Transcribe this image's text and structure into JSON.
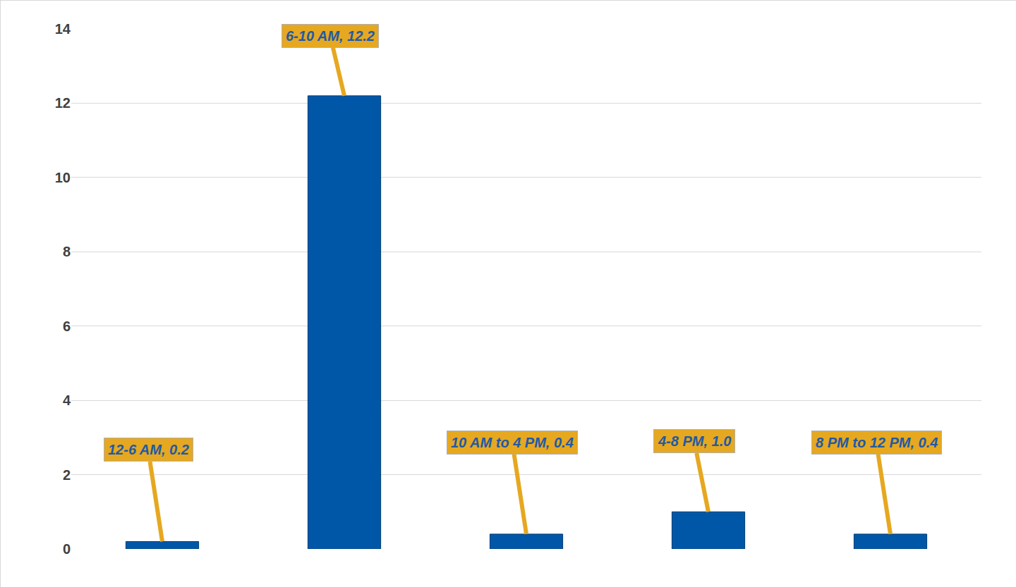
{
  "chart_data": {
    "type": "bar",
    "categories": [
      "12-6 AM",
      "6-10 AM",
      "10 AM to 4 PM",
      "4-8 PM",
      "8 PM to 12 PM"
    ],
    "values": [
      0.2,
      12.2,
      0.4,
      1.0,
      0.4
    ],
    "value_labels": [
      "12-6 AM, 0.2",
      "6-10 AM, 12.2",
      "10 AM to 4 PM, 0.4",
      "4-8 PM, 1.0",
      "8 PM to 12 PM, 0.4"
    ],
    "data_labels": true,
    "color": "#0057a8",
    "ylim": [
      0,
      14
    ],
    "yticks": [
      0,
      2,
      4,
      6,
      8,
      10,
      12,
      14
    ],
    "grid": true,
    "tick_labels": "y"
  }
}
